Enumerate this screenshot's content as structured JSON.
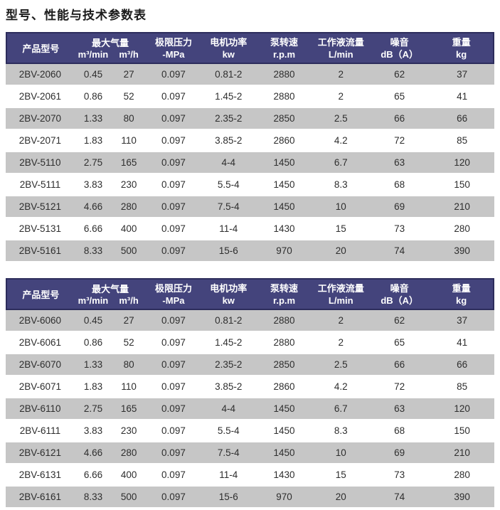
{
  "page_title": "型号、性能与技术参数表",
  "colors": {
    "header_bg": "#44447c",
    "header_border": "#2d2d5c",
    "row_alt_bg": "#c6c6c6",
    "body_text": "#2e2e2e"
  },
  "table_header": {
    "model": "产品型号",
    "max_air": "最大气量",
    "max_air_unit_min": "m³/min",
    "max_air_unit_h": "m³/h",
    "pressure": "极限压力",
    "pressure_unit": "-MPa",
    "power": "电机功率",
    "power_unit": "kw",
    "speed": "泵转速",
    "speed_unit": "r.p.m",
    "flow": "工作液流量",
    "flow_unit": "L/min",
    "noise": "噪音",
    "noise_unit": "dB（A）",
    "weight": "重量",
    "weight_unit": "kg"
  },
  "tables": [
    {
      "rows": [
        [
          "2BV-2060",
          "0.45",
          "27",
          "0.097",
          "0.81-2",
          "2880",
          "2",
          "62",
          "37"
        ],
        [
          "2BV-2061",
          "0.86",
          "52",
          "0.097",
          "1.45-2",
          "2880",
          "2",
          "65",
          "41"
        ],
        [
          "2BV-2070",
          "1.33",
          "80",
          "0.097",
          "2.35-2",
          "2850",
          "2.5",
          "66",
          "66"
        ],
        [
          "2BV-2071",
          "1.83",
          "110",
          "0.097",
          "3.85-2",
          "2860",
          "4.2",
          "72",
          "85"
        ],
        [
          "2BV-5110",
          "2.75",
          "165",
          "0.097",
          "4-4",
          "1450",
          "6.7",
          "63",
          "120"
        ],
        [
          "2BV-5111",
          "3.83",
          "230",
          "0.097",
          "5.5-4",
          "1450",
          "8.3",
          "68",
          "150"
        ],
        [
          "2BV-5121",
          "4.66",
          "280",
          "0.097",
          "7.5-4",
          "1450",
          "10",
          "69",
          "210"
        ],
        [
          "2BV-5131",
          "6.66",
          "400",
          "0.097",
          "11-4",
          "1430",
          "15",
          "73",
          "280"
        ],
        [
          "2BV-5161",
          "8.33",
          "500",
          "0.097",
          "15-6",
          "970",
          "20",
          "74",
          "390"
        ]
      ]
    },
    {
      "rows": [
        [
          "2BV-6060",
          "0.45",
          "27",
          "0.097",
          "0.81-2",
          "2880",
          "2",
          "62",
          "37"
        ],
        [
          "2BV-6061",
          "0.86",
          "52",
          "0.097",
          "1.45-2",
          "2880",
          "2",
          "65",
          "41"
        ],
        [
          "2BV-6070",
          "1.33",
          "80",
          "0.097",
          "2.35-2",
          "2850",
          "2.5",
          "66",
          "66"
        ],
        [
          "2BV-6071",
          "1.83",
          "110",
          "0.097",
          "3.85-2",
          "2860",
          "4.2",
          "72",
          "85"
        ],
        [
          "2BV-6110",
          "2.75",
          "165",
          "0.097",
          "4-4",
          "1450",
          "6.7",
          "63",
          "120"
        ],
        [
          "2BV-6111",
          "3.83",
          "230",
          "0.097",
          "5.5-4",
          "1450",
          "8.3",
          "68",
          "150"
        ],
        [
          "2BV-6121",
          "4.66",
          "280",
          "0.097",
          "7.5-4",
          "1450",
          "10",
          "69",
          "210"
        ],
        [
          "2BV-6131",
          "6.66",
          "400",
          "0.097",
          "11-4",
          "1430",
          "15",
          "73",
          "280"
        ],
        [
          "2BV-6161",
          "8.33",
          "500",
          "0.097",
          "15-6",
          "970",
          "20",
          "74",
          "390"
        ]
      ]
    }
  ]
}
